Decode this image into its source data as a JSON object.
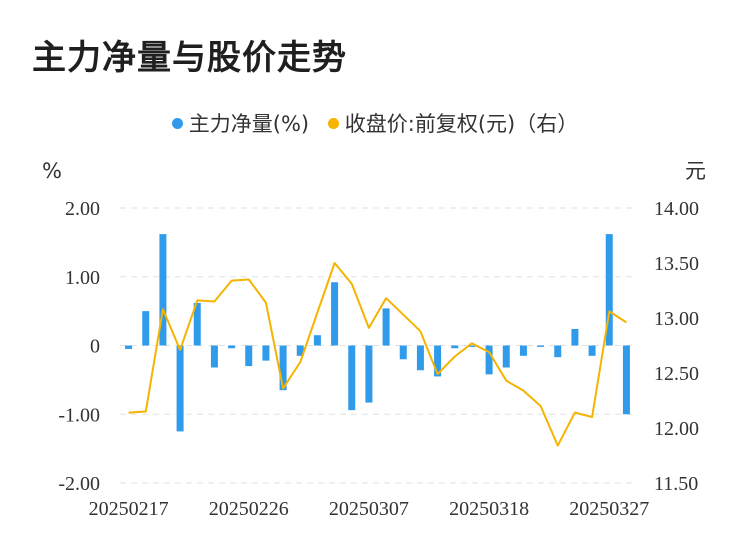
{
  "title": "主力净量与股价走势",
  "legend": [
    {
      "label": "主力净量(%)",
      "color": "#2f9bea"
    },
    {
      "label": "收盘价:前复权(元)（右）",
      "color": "#f5b400"
    }
  ],
  "chart_data": {
    "type": "bar+line",
    "left_unit": "%",
    "right_unit": "元",
    "left_ticks": [
      "2.00",
      "1.00",
      "0",
      "-1.00",
      "-2.00"
    ],
    "right_ticks": [
      "14.00",
      "13.50",
      "13.00",
      "12.50",
      "12.00",
      "11.50"
    ],
    "x_tick_labels": [
      "20250217",
      "20250226",
      "20250307",
      "20250318",
      "20250327"
    ],
    "left_ylim": [
      -2,
      2
    ],
    "right_ylim": [
      11.5,
      14.0
    ],
    "grid": true,
    "series": [
      {
        "name": "主力净量(%)",
        "type": "bar",
        "color": "#2f9bea",
        "values": [
          -0.05,
          0.5,
          1.62,
          -1.25,
          0.62,
          -0.32,
          -0.04,
          -0.3,
          -0.22,
          -0.65,
          -0.15,
          0.15,
          0.92,
          -0.94,
          -0.83,
          0.54,
          -0.2,
          -0.36,
          -0.45,
          -0.04,
          -0.02,
          -0.42,
          -0.32,
          -0.15,
          -0.02,
          -0.17,
          0.24,
          -0.15,
          1.62,
          -1.0
        ]
      },
      {
        "name": "收盘价:前复权(元)（右）",
        "type": "line",
        "color": "#f5b400",
        "values": [
          12.14,
          12.15,
          13.08,
          12.71,
          13.16,
          13.15,
          13.34,
          13.35,
          13.14,
          12.36,
          12.6,
          13.05,
          13.5,
          13.31,
          12.91,
          13.18,
          13.03,
          12.88,
          12.49,
          12.65,
          12.77,
          12.69,
          12.43,
          12.34,
          12.2,
          11.84,
          12.14,
          12.1,
          13.06,
          12.96
        ]
      }
    ]
  }
}
